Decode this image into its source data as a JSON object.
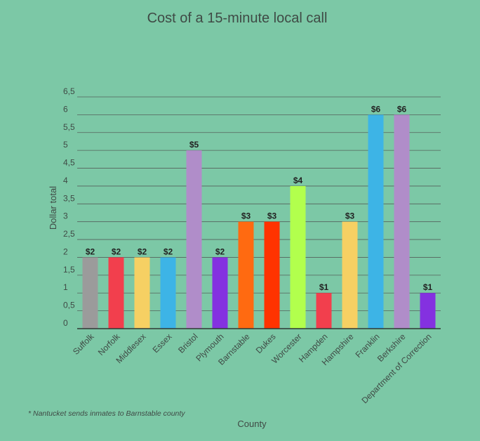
{
  "chart_data": {
    "type": "bar",
    "title": "Cost of a 15-minute local call",
    "xlabel": "County",
    "ylabel": "Dollar total",
    "ylim": [
      0,
      6.5
    ],
    "yticks": [
      "0",
      "0,5",
      "1",
      "1,5",
      "2",
      "2,5",
      "3",
      "3,5",
      "4",
      "4,5",
      "5",
      "5,5",
      "6",
      "6,5"
    ],
    "grid": true,
    "categories": [
      "Suffolk",
      "Norfolk",
      "Middlesex",
      "Essex",
      "Bristol",
      "Plymouth",
      "Barnstable",
      "Dukes",
      "Worcester",
      "Hampden",
      "Hampshire",
      "Franklin",
      "Berkshire",
      "Department of Correction"
    ],
    "values": [
      2,
      2,
      2,
      2,
      5,
      2,
      3,
      3,
      4,
      1,
      3,
      6,
      6,
      1
    ],
    "value_labels": [
      "$2",
      "$2",
      "$2",
      "$2",
      "$5",
      "$2",
      "$3",
      "$3",
      "$4",
      "$1",
      "$3",
      "$6",
      "$6",
      "$1"
    ],
    "colors": [
      "#9b9b9b",
      "#f23f4d",
      "#f6d063",
      "#3db4e6",
      "#b08dc9",
      "#8431e0",
      "#ff6a11",
      "#ff3300",
      "#b2ff4d",
      "#f23f4d",
      "#f6d063",
      "#3db4e6",
      "#b08dc9",
      "#8431e0"
    ],
    "annotation": "* Nantucket sends inmates to Barnstable county"
  }
}
